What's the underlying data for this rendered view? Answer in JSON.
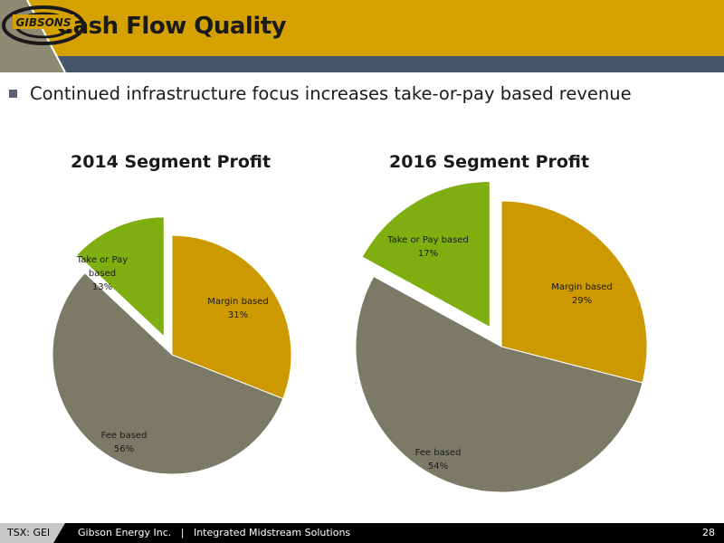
{
  "header": {
    "title": "Cash Flow Quality",
    "logo_text": "GIBSONS",
    "colors": {
      "gold": "#d4a100",
      "slate": "#46566a",
      "gray": "#8c8a73"
    }
  },
  "bullet": {
    "text": "Continued infrastructure focus increases take-or-pay based revenue"
  },
  "chart_data": [
    {
      "type": "pie",
      "title": "2014 Segment Profit",
      "slices": [
        {
          "label_lines": [
            "Margin based",
            "31%"
          ],
          "value": 31,
          "color": "#cc9900",
          "exploded": false
        },
        {
          "label_lines": [
            "Fee based",
            "56%"
          ],
          "value": 56,
          "color": "#7a7a66",
          "exploded": false
        },
        {
          "label_lines": [
            "Take or Pay",
            "based",
            "13%"
          ],
          "value": 13,
          "color": "#7fae10",
          "exploded": true
        }
      ]
    },
    {
      "type": "pie",
      "title": "2016 Segment Profit",
      "slices": [
        {
          "label_lines": [
            "Margin based",
            "29%"
          ],
          "value": 29,
          "color": "#cc9900",
          "exploded": false
        },
        {
          "label_lines": [
            "Fee based",
            "54%"
          ],
          "value": 54,
          "color": "#7a7a66",
          "exploded": false
        },
        {
          "label_lines": [
            "Take or Pay based",
            "17%"
          ],
          "value": 17,
          "color": "#7fae10",
          "exploded": true
        }
      ]
    }
  ],
  "footer": {
    "ticker": "TSX: GEI",
    "text": "Gibson Energy Inc.   |   Integrated Midstream Solutions",
    "page": "28"
  }
}
